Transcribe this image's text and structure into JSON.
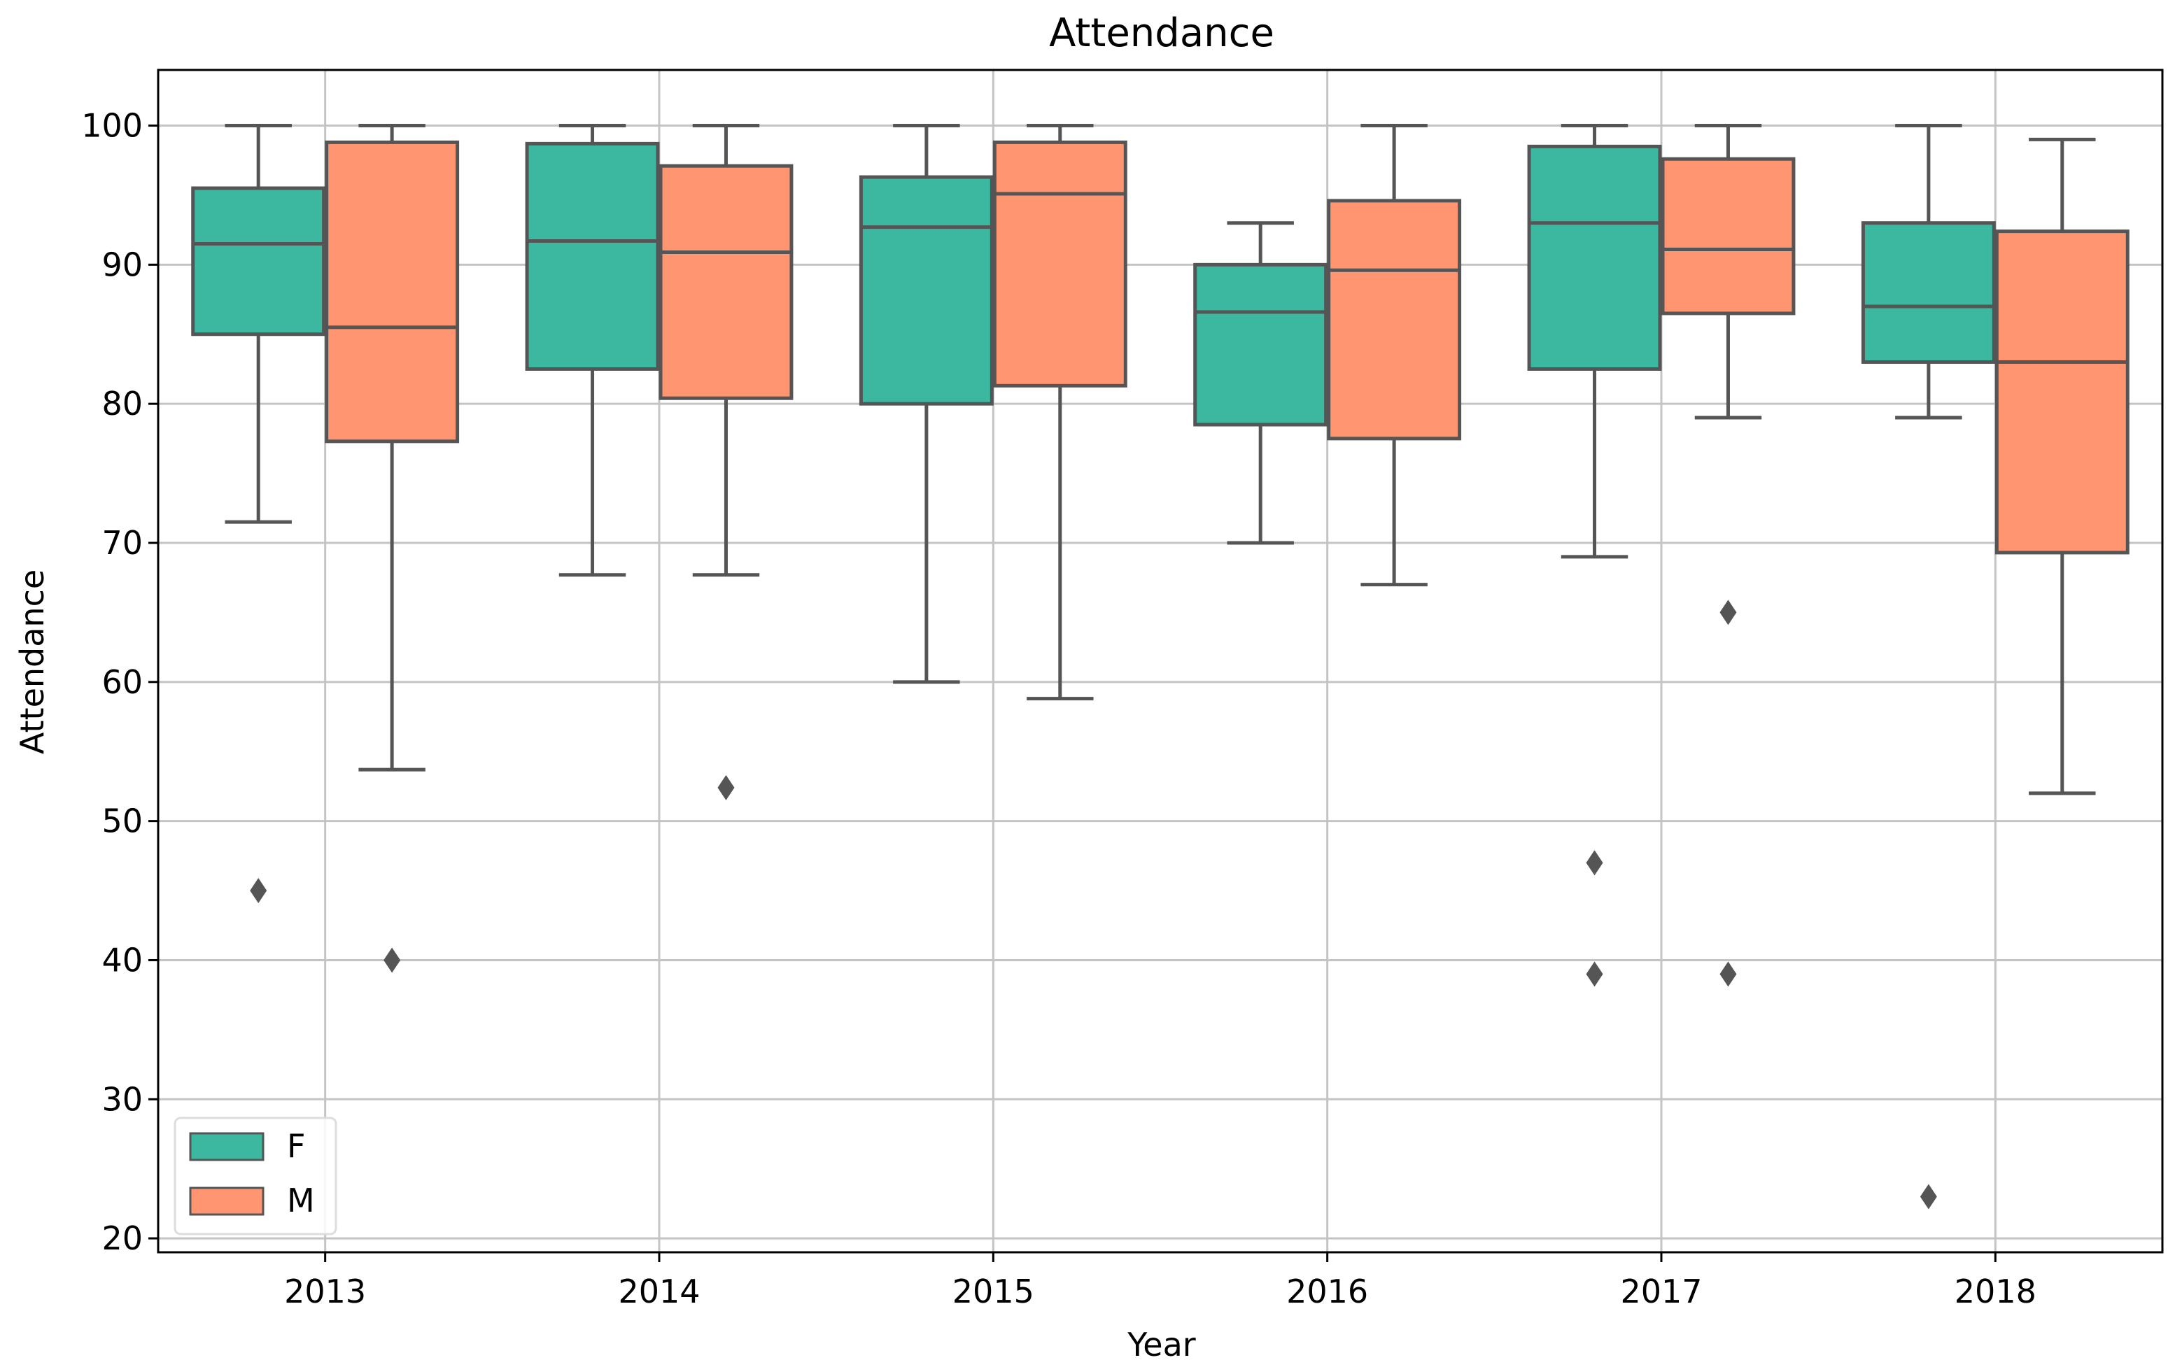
{
  "chart_data": {
    "type": "boxplot",
    "title": "Attendance",
    "xlabel": "Year",
    "ylabel": "Attendance",
    "ylim": [
      19,
      104
    ],
    "yticks": [
      20,
      30,
      40,
      50,
      60,
      70,
      80,
      90,
      100
    ],
    "grid": true,
    "legend_position": "bottom-left",
    "categories": [
      "2013",
      "2014",
      "2015",
      "2016",
      "2017",
      "2018"
    ],
    "series": [
      {
        "name": "F",
        "color": "#3cb8a0",
        "boxes": [
          {
            "whisker_low": 71.5,
            "q1": 85,
            "median": 91.5,
            "q3": 95.5,
            "whisker_high": 100,
            "outliers": [
              45
            ]
          },
          {
            "whisker_low": 67.7,
            "q1": 82.5,
            "median": 91.7,
            "q3": 98.7,
            "whisker_high": 100,
            "outliers": []
          },
          {
            "whisker_low": 60,
            "q1": 80,
            "median": 92.7,
            "q3": 96.3,
            "whisker_high": 100,
            "outliers": []
          },
          {
            "whisker_low": 70,
            "q1": 78.5,
            "median": 86.6,
            "q3": 90,
            "whisker_high": 93,
            "outliers": []
          },
          {
            "whisker_low": 69,
            "q1": 82.5,
            "median": 93,
            "q3": 98.5,
            "whisker_high": 100,
            "outliers": [
              47,
              39
            ]
          },
          {
            "whisker_low": 79,
            "q1": 83,
            "median": 87,
            "q3": 93,
            "whisker_high": 100,
            "outliers": [
              23
            ]
          }
        ]
      },
      {
        "name": "M",
        "color": "#ff9671",
        "boxes": [
          {
            "whisker_low": 53.7,
            "q1": 77.3,
            "median": 85.5,
            "q3": 98.8,
            "whisker_high": 100,
            "outliers": [
              40
            ]
          },
          {
            "whisker_low": 67.7,
            "q1": 80.4,
            "median": 90.9,
            "q3": 97.1,
            "whisker_high": 100,
            "outliers": [
              52.4
            ]
          },
          {
            "whisker_low": 58.8,
            "q1": 81.3,
            "median": 95.1,
            "q3": 98.8,
            "whisker_high": 100,
            "outliers": []
          },
          {
            "whisker_low": 67,
            "q1": 77.5,
            "median": 89.6,
            "q3": 94.6,
            "whisker_high": 100,
            "outliers": []
          },
          {
            "whisker_low": 79,
            "q1": 86.5,
            "median": 91.1,
            "q3": 97.6,
            "whisker_high": 100,
            "outliers": [
              65,
              39
            ]
          },
          {
            "whisker_low": 52,
            "q1": 69.3,
            "median": 83,
            "q3": 92.4,
            "whisker_high": 99,
            "outliers": []
          }
        ]
      }
    ],
    "styling": {
      "line_color": "#555555",
      "grid_color": "#c4c4c4",
      "legend_edge_color": "#dddddd"
    }
  }
}
